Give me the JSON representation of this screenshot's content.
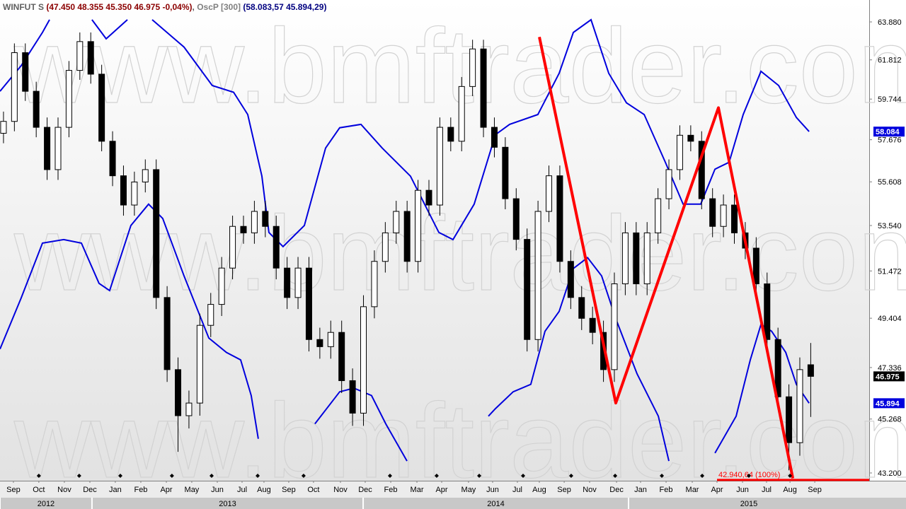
{
  "header": {
    "symbol": "WINFUT S",
    "quote": "(47.450 48.355 45.350 46.975 -0,04%)",
    "indicator": "OscP [300]",
    "indicator_values": "(58.083,57 45.894,29)"
  },
  "watermark": "www.bmftrader.com",
  "chart_data": {
    "type": "candlestick",
    "log_scale": true,
    "ylim": [
      42910,
      65106
    ],
    "yticks": [
      {
        "value": 63880,
        "label": "63.880"
      },
      {
        "value": 61812,
        "label": "61.812"
      },
      {
        "value": 59744,
        "label": "59.744"
      },
      {
        "value": 57676,
        "label": "57.676"
      },
      {
        "value": 55608,
        "label": "55.608"
      },
      {
        "value": 53540,
        "label": "53.540"
      },
      {
        "value": 51472,
        "label": "51.472"
      },
      {
        "value": 49404,
        "label": "49.404"
      },
      {
        "value": 47336,
        "label": "47.336"
      },
      {
        "value": 45268,
        "label": "45.268"
      },
      {
        "value": 43200,
        "label": "43.200"
      }
    ],
    "xlim": [
      -0.32,
      79.36
    ],
    "xticks": [
      {
        "value": 0.91,
        "label": "Sep"
      },
      {
        "value": 3.24,
        "label": "Oct"
      },
      {
        "value": 5.58,
        "label": "Nov"
      },
      {
        "value": 7.92,
        "label": "Dec"
      },
      {
        "value": 10.25,
        "label": "Jan"
      },
      {
        "value": 12.59,
        "label": "Feb"
      },
      {
        "value": 14.93,
        "label": "Apr"
      },
      {
        "value": 17.26,
        "label": "May"
      },
      {
        "value": 19.6,
        "label": "Jun"
      },
      {
        "value": 21.87,
        "label": "Jul"
      },
      {
        "value": 23.88,
        "label": "Aug"
      },
      {
        "value": 26.15,
        "label": "Sep"
      },
      {
        "value": 28.42,
        "label": "Oct"
      },
      {
        "value": 30.89,
        "label": "Nov"
      },
      {
        "value": 33.16,
        "label": "Dec"
      },
      {
        "value": 35.5,
        "label": "Feb"
      },
      {
        "value": 37.9,
        "label": "Mar"
      },
      {
        "value": 40.17,
        "label": "Apr"
      },
      {
        "value": 42.63,
        "label": "May"
      },
      {
        "value": 44.84,
        "label": "Jun"
      },
      {
        "value": 47.11,
        "label": "Jul"
      },
      {
        "value": 49.12,
        "label": "Aug"
      },
      {
        "value": 51.4,
        "label": "Sep"
      },
      {
        "value": 53.73,
        "label": "Nov"
      },
      {
        "value": 56.2,
        "label": "Dec"
      },
      {
        "value": 58.4,
        "label": "Jan"
      },
      {
        "value": 60.74,
        "label": "Feb"
      },
      {
        "value": 63.14,
        "label": "Mar"
      },
      {
        "value": 65.41,
        "label": "Apr"
      },
      {
        "value": 67.75,
        "label": "Jun"
      },
      {
        "value": 69.95,
        "label": "Jul"
      },
      {
        "value": 72.1,
        "label": "Aug"
      },
      {
        "value": 74.37,
        "label": "Sep"
      }
    ],
    "years": [
      {
        "label": "2012",
        "start": -0.32,
        "end": 8.11
      },
      {
        "label": "2013",
        "start": 8.11,
        "end": 32.97
      },
      {
        "label": "2014",
        "start": 32.97,
        "end": 57.3
      },
      {
        "label": "2015",
        "start": 57.3,
        "end": 79.36
      }
    ],
    "up_color": "#ffffff",
    "down_color": "#000000",
    "open": [
      58000,
      58600,
      62200,
      60150,
      58300,
      56200,
      58300,
      61250,
      62800,
      61050,
      57600,
      55900,
      54500,
      55600,
      56200,
      50300,
      47250,
      45400,
      45900,
      49100,
      50000,
      51600,
      53500,
      53200,
      54200,
      53500,
      51600,
      50300,
      51600,
      48500,
      48200,
      48800,
      46800,
      45500,
      49900,
      51900,
      53200,
      54200,
      51900,
      55200,
      54500,
      58300,
      57600,
      60400,
      62400,
      58300,
      57300,
      54800,
      52900,
      48500,
      54200,
      55900,
      51900,
      50300,
      49400,
      48800,
      47250,
      50900,
      53200,
      50900,
      53200,
      54800,
      56200,
      57900,
      57600,
      54800,
      53500,
      54500,
      53200,
      52500,
      50900,
      48500,
      46150,
      44350,
      47450
    ],
    "high": [
      59100,
      62700,
      62700,
      60650,
      58800,
      58800,
      61750,
      63300,
      63300,
      61550,
      58100,
      56400,
      56100,
      56700,
      56700,
      50800,
      47750,
      46400,
      49600,
      50500,
      52100,
      54000,
      54000,
      54700,
      54700,
      54000,
      52100,
      52100,
      52100,
      49000,
      49300,
      49300,
      47300,
      50400,
      52400,
      53700,
      54700,
      54700,
      55700,
      55700,
      58800,
      58800,
      60900,
      62900,
      62900,
      58800,
      57800,
      55300,
      53400,
      54700,
      56400,
      56400,
      52400,
      50800,
      49900,
      49300,
      51400,
      53700,
      53700,
      53700,
      55300,
      56700,
      58400,
      58400,
      58100,
      55300,
      55000,
      55000,
      53700,
      53000,
      51400,
      49000,
      46650,
      47750,
      48355
    ],
    "low": [
      57500,
      58100,
      59650,
      57800,
      55700,
      55700,
      57800,
      60750,
      60550,
      57100,
      55400,
      54000,
      54000,
      55100,
      49800,
      46750,
      44000,
      44900,
      45400,
      48600,
      49500,
      51100,
      52700,
      52700,
      53000,
      51100,
      49800,
      49800,
      48000,
      47700,
      47700,
      46300,
      45000,
      45000,
      49400,
      51400,
      52700,
      51400,
      51400,
      54000,
      54000,
      57100,
      57100,
      59900,
      57800,
      56800,
      54300,
      52400,
      48000,
      48000,
      53700,
      51400,
      49800,
      48900,
      48300,
      46750,
      46750,
      50400,
      50400,
      50400,
      52700,
      54300,
      55700,
      57100,
      54300,
      53000,
      53000,
      52700,
      52000,
      50400,
      48000,
      45650,
      43300,
      43850,
      45350
    ],
    "close": [
      58600,
      62200,
      60150,
      58300,
      56200,
      58300,
      61250,
      62800,
      61050,
      57600,
      55900,
      54500,
      55600,
      56200,
      50300,
      47250,
      45400,
      45900,
      49100,
      50000,
      51600,
      53500,
      53200,
      54200,
      53500,
      51600,
      50300,
      51600,
      48500,
      48200,
      48800,
      46800,
      45500,
      49900,
      51900,
      53200,
      54200,
      51900,
      55200,
      54500,
      58300,
      57600,
      60400,
      62400,
      58300,
      57300,
      54800,
      52900,
      48500,
      54200,
      55900,
      51900,
      50300,
      49400,
      48800,
      47250,
      50900,
      53200,
      50900,
      53200,
      54800,
      56200,
      57900,
      57600,
      54800,
      53500,
      54500,
      53200,
      52500,
      50900,
      48500,
      46150,
      44350,
      47250,
      46975
    ],
    "bands": [
      {
        "color": "#0000dd",
        "x": [
          -0.32,
          1.62,
          3.57,
          4.22,
          6,
          8.11,
          9.41,
          11.36,
          12.5,
          13.63,
          16.55,
          19.14,
          21.09,
          22.39,
          23.69,
          24.33,
          25.63,
          27.58,
          29.53,
          30.82,
          32.77,
          34.72,
          37.31,
          39.91,
          41.21,
          43.15,
          45.1,
          46.4,
          48.99,
          50.94,
          52.24,
          53.86,
          55.48,
          57.11,
          58.73,
          60.67,
          62.3,
          63.92,
          65.22,
          66.52,
          67.81,
          69.44,
          71.06,
          72.68,
          73.85
        ],
        "values": [
          60150,
          61500,
          63300,
          64000,
          null,
          64000,
          62950,
          64000,
          null,
          64000,
          62500,
          60450,
          60100,
          58950,
          55880,
          53220,
          52570,
          53540,
          57260,
          58280,
          58450,
          57260,
          55880,
          53220,
          52890,
          54540,
          57930,
          58450,
          58950,
          61100,
          63300,
          64000,
          61100,
          59550,
          58950,
          56560,
          54540,
          54540,
          56220,
          56560,
          58950,
          61200,
          60450,
          58800,
          58084
        ]
      },
      {
        "color": "#0000dd",
        "x": [
          -0.32,
          1.62,
          3.57,
          5.52,
          7.14,
          8.76,
          9.73,
          11.68,
          13.3,
          14.6,
          16.55,
          18.82,
          20.44,
          21.74,
          22.71,
          23.36,
          25,
          28.55,
          30.82,
          32.12,
          33.74,
          35.04,
          36.99,
          40,
          44.45,
          45.1,
          46.72,
          48.34,
          49.64,
          50.94,
          52.24,
          53.54,
          54.83,
          56.13,
          58.08,
          60.03,
          61.0,
          63,
          65.22,
          67.16,
          68.46,
          69.44,
          70.41,
          71.71,
          72.68,
          73.85
        ],
        "values": [
          48100,
          50280,
          52730,
          52890,
          52730,
          50920,
          50600,
          53540,
          54540,
          53870,
          51250,
          48560,
          47960,
          47650,
          46200,
          44500,
          null,
          45080,
          46350,
          46500,
          46200,
          45080,
          43650,
          null,
          45380,
          45680,
          46350,
          46650,
          48850,
          49700,
          51580,
          52070,
          51250,
          49380,
          47080,
          45380,
          43650,
          null,
          43950,
          45380,
          47650,
          49140,
          48850,
          47960,
          46650,
          45894
        ]
      }
    ],
    "zigzag": {
      "color": "#ff0000",
      "x": [
        49.12,
        56.13,
        65.54,
        72.36
      ],
      "values": [
        63050,
        45900,
        59300,
        43000
      ]
    },
    "level": {
      "value": 42940.64,
      "label": "42.940,64 (100%)",
      "x_start": 65.41,
      "color": "#ff0000"
    },
    "event_markers": [
      3.24,
      6.94,
      10.71,
      15.44,
      19.08,
      23.3,
      27.51,
      35.43,
      39.71,
      43.61,
      47.63,
      52.04,
      56.07,
      60.35,
      64.05,
      68.33,
      72.1
    ],
    "price_tags": [
      {
        "value": 58084,
        "label": "58.084",
        "color": "#0000dd"
      },
      {
        "value": 46975,
        "label": "46.975",
        "color": "#000000"
      },
      {
        "value": 45894,
        "label": "45.894",
        "color": "#0000dd"
      }
    ]
  }
}
